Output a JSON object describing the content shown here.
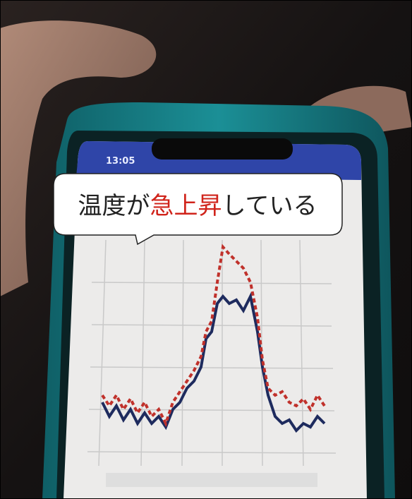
{
  "phone": {
    "status_time": "13:05"
  },
  "bubble": {
    "text_before": "温度が",
    "text_highlight": "急上昇",
    "text_after": "している"
  }
}
